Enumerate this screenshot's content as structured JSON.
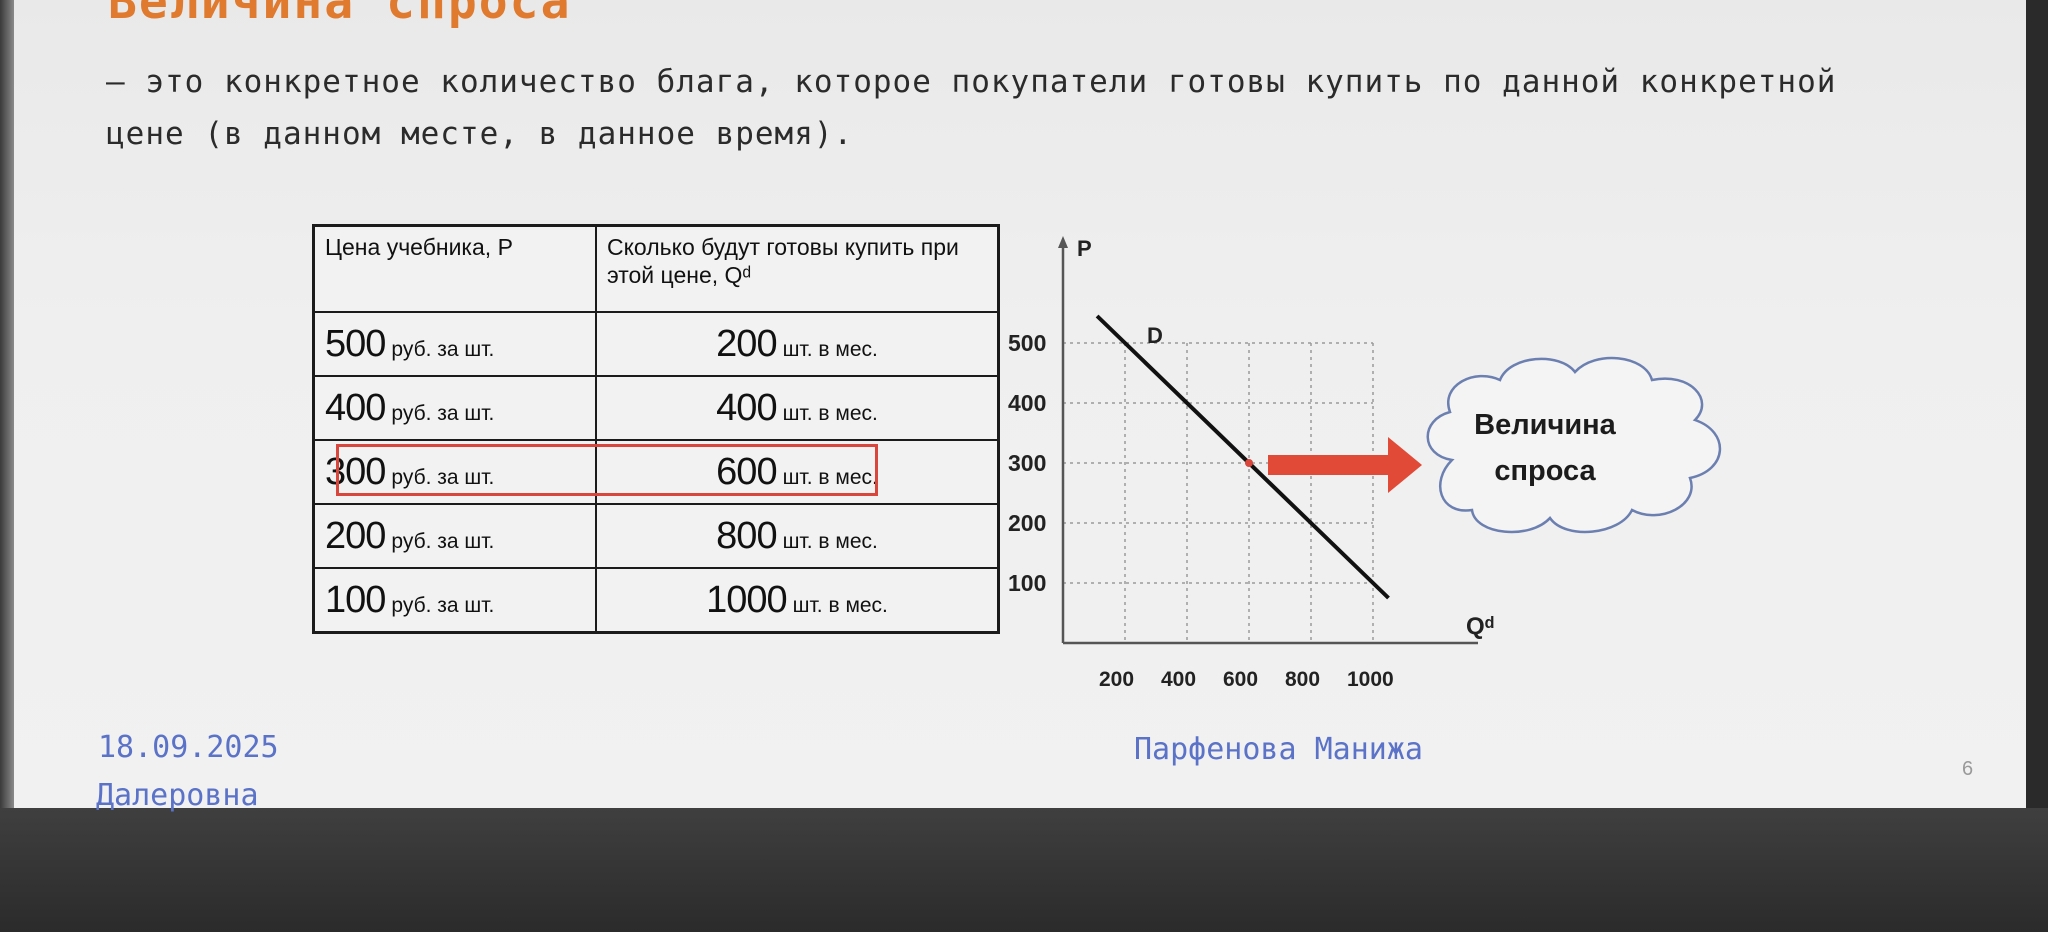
{
  "slide": {
    "title": "Величина спроса",
    "definition": "– это конкретное количество блага, которое покупатели готовы купить по данной конкретной цене (в данном месте, в данное время).",
    "page_number": "6"
  },
  "table": {
    "headers": [
      "Цена учебника, P",
      "Сколько будут готовы купить при этой цене, Qᵈ"
    ],
    "rows": [
      {
        "price": "500",
        "price_unit": "руб. за шт.",
        "qty": "200",
        "qty_unit": "шт. в мес."
      },
      {
        "price": "400",
        "price_unit": "руб. за шт.",
        "qty": "400",
        "qty_unit": "шт. в мес."
      },
      {
        "price": "300",
        "price_unit": "руб. за шт.",
        "qty": "600",
        "qty_unit": "шт. в мес."
      },
      {
        "price": "200",
        "price_unit": "руб. за шт.",
        "qty": "800",
        "qty_unit": "шт. в мес."
      },
      {
        "price": "100",
        "price_unit": "руб. за шт.",
        "qty": "1000",
        "qty_unit": "шт. в мес."
      }
    ],
    "highlighted_row": 2
  },
  "chart_data": {
    "type": "line",
    "xlabel": "Qᵈ",
    "ylabel": "P",
    "x_ticks": [
      200,
      400,
      600,
      800,
      1000
    ],
    "y_ticks": [
      100,
      200,
      300,
      400,
      500
    ],
    "series": [
      {
        "name": "D",
        "x": [
          200,
          400,
          600,
          800,
          1000
        ],
        "y": [
          500,
          400,
          300,
          200,
          100
        ]
      }
    ],
    "highlighted_point": {
      "x": 600,
      "y": 300
    },
    "grid": true,
    "grid_color": "#9a9a9a",
    "line_color": "#111111",
    "point_color": "#d9463c"
  },
  "callout": {
    "text": "Величина спроса",
    "arrow_color": "#e04a36",
    "cloud_border": "#6b7fb0"
  },
  "footer": {
    "date": "18.09.2025",
    "author_line1": "Парфенова Манижа",
    "author_line2": "Далеровна"
  }
}
